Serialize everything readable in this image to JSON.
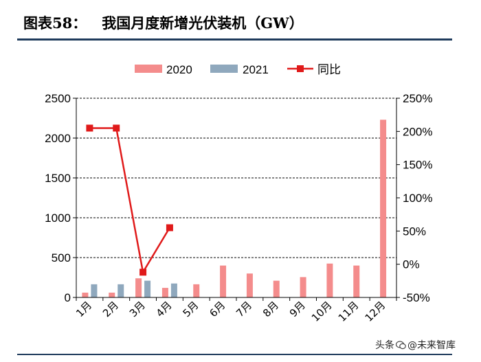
{
  "title": {
    "label": "图表58：",
    "text": "我国月度新增光伏装机（GW）"
  },
  "watermark": {
    "prefix": "头条",
    "handle": "@未来智库",
    "icon": "wechat-bubble-icon"
  },
  "colors": {
    "s2020": "#f48c8c",
    "s2021": "#8fa8bd",
    "yoy": "#e01a1a",
    "grid": "#000000",
    "rule": "#1f3b5c"
  },
  "chart_data": {
    "type": "bar",
    "categories": [
      "1月",
      "2月",
      "3月",
      "4月",
      "5月",
      "6月",
      "7月",
      "8月",
      "9月",
      "10月",
      "11月",
      "12月"
    ],
    "series": [
      {
        "name": "2020",
        "type": "bar",
        "axis": "left",
        "values": [
          60,
          60,
          240,
          120,
          165,
          400,
          300,
          210,
          255,
          425,
          400,
          2230
        ]
      },
      {
        "name": "2021",
        "type": "bar",
        "axis": "left",
        "values": [
          165,
          165,
          210,
          175,
          null,
          null,
          null,
          null,
          null,
          null,
          null,
          null
        ]
      },
      {
        "name": "同比",
        "type": "line",
        "axis": "right",
        "unit": "%",
        "values": [
          205,
          205,
          -12,
          55,
          null,
          null,
          null,
          null,
          null,
          null,
          null,
          null
        ]
      }
    ],
    "y_left": {
      "min": 0,
      "max": 2500,
      "ticks": [
        0,
        500,
        1000,
        1500,
        2000,
        2500
      ]
    },
    "y_right": {
      "min": -50,
      "max": 250,
      "ticks": [
        -50,
        0,
        50,
        100,
        150,
        200,
        250
      ],
      "format": "{v}%"
    },
    "grid": true,
    "legend_position": "top"
  }
}
